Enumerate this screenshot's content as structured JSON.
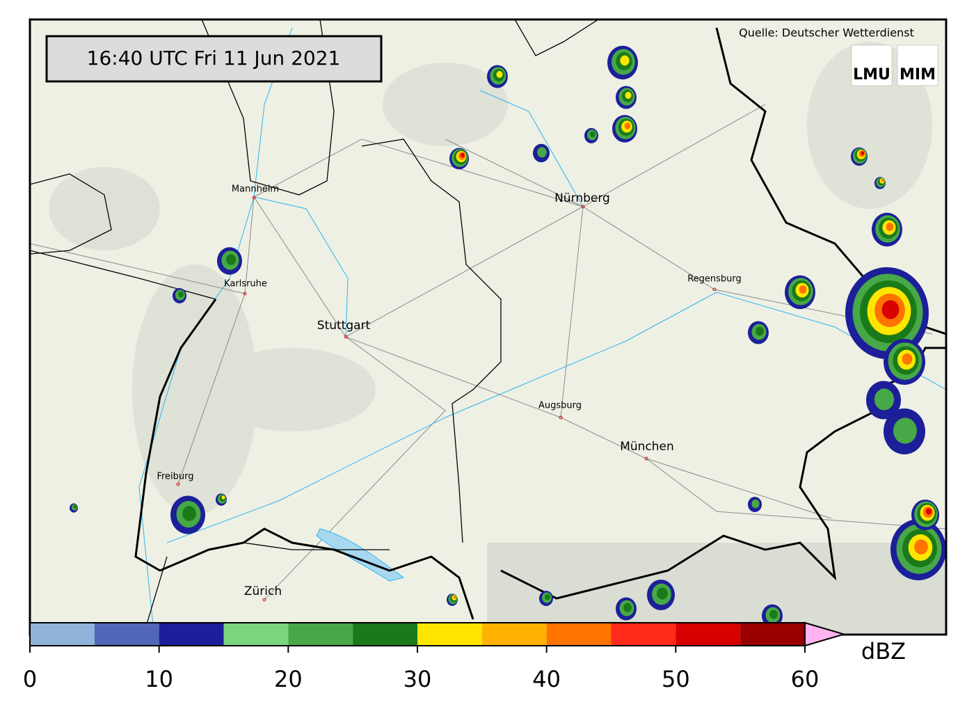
{
  "header": {
    "timestamp": "16:40 UTC  Fri 11 Jun 2021",
    "source": "Quelle: Deutscher Wetterdienst",
    "logos": [
      "LMU",
      "MIM"
    ]
  },
  "map": {
    "cities": [
      "Mannheim",
      "Nürnberg",
      "Karlsruhe",
      "Regensburg",
      "Stuttgart",
      "Augsburg",
      "München",
      "Freiburg",
      "Zürich"
    ]
  },
  "colorbar": {
    "unit": "dBZ",
    "ticks": [
      0,
      10,
      20,
      30,
      40,
      50,
      60
    ],
    "levels": [
      0,
      5,
      10,
      15,
      20,
      25,
      30,
      35,
      40,
      45,
      50,
      55,
      60
    ],
    "colors": [
      "#8fb3d9",
      "#5266b8",
      "#1c1f99",
      "#7ad67a",
      "#47a847",
      "#1a7a1a",
      "#ffe600",
      "#ffb300",
      "#ff7300",
      "#ff2a1a",
      "#d90000",
      "#990000"
    ],
    "extend_color": "#ffb3f0"
  }
}
